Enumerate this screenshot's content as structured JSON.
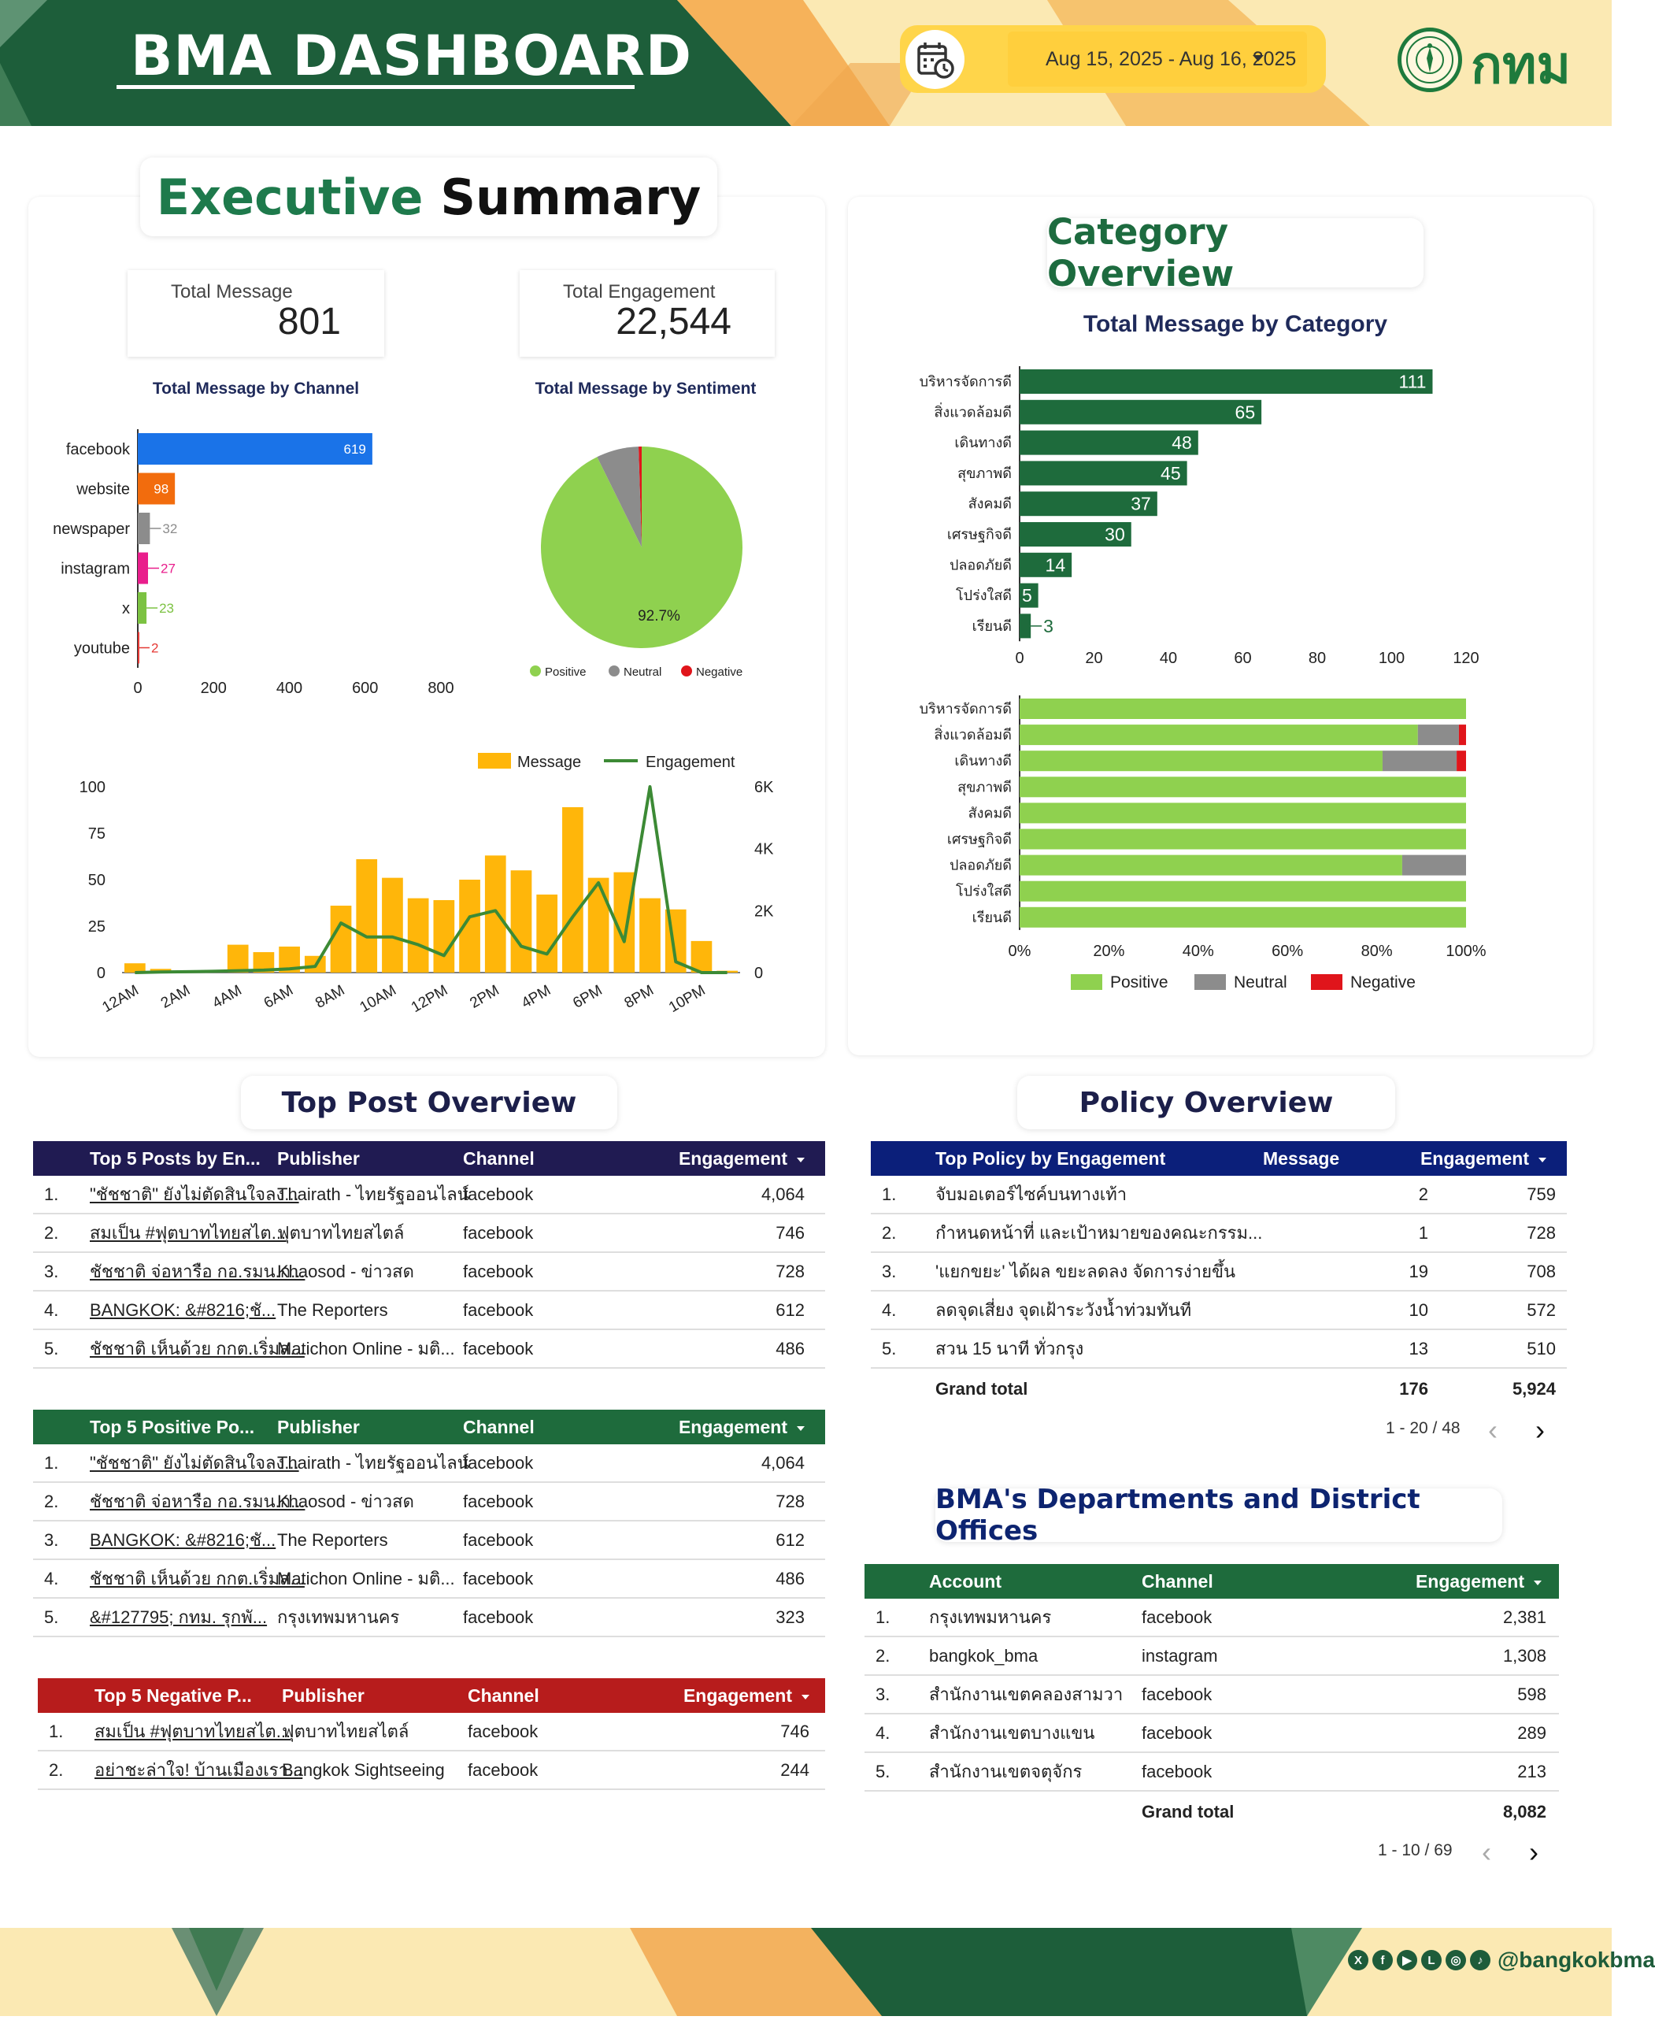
{
  "header": {
    "title": "BMA DASHBOARD",
    "date_range": "Aug 15, 2025 - Aug 16, 2025",
    "logo_text": "กทม"
  },
  "colors": {
    "dark_green": "#1e6b3c",
    "positive": "#8fd14f",
    "neutral": "#8c8c8c",
    "negative": "#e0151b",
    "message": "#ffb60a",
    "engagement": "#3c8a35",
    "navy": "#201b52",
    "policy_blue": "#0b1f7a",
    "red_header": "#b71c1c"
  },
  "executive": {
    "title_word1": "Executive",
    "title_word2": "Summary",
    "total_message_label": "Total Message",
    "total_message_value": "801",
    "total_engagement_label": "Total Engagement",
    "total_engagement_value": "22,544"
  },
  "category": {
    "title": "Category Overview"
  },
  "top_post": {
    "title": "Top Post Overview",
    "engagement": {
      "headers": [
        "Top 5 Posts by En...",
        "Publisher",
        "Channel",
        "Engagement"
      ],
      "rows": [
        {
          "no": "1.",
          "post": "\"ชัชชาติ\" ยังไม่ตัดสินใจลง...",
          "publisher": "Thairath - ไทยรัฐออนไลน์",
          "channel": "facebook",
          "engagement": "4,064"
        },
        {
          "no": "2.",
          "post": "สมเป็น #ฟุตบาทไทยสไต...",
          "publisher": "ฟุตบาทไทยสไตล์",
          "channel": "facebook",
          "engagement": "746"
        },
        {
          "no": "3.",
          "post": "ชัชชาติ จ่อหารือ กอ.รมน.ก...",
          "publisher": "Khaosod - ข่าวสด",
          "channel": "facebook",
          "engagement": "728"
        },
        {
          "no": "4.",
          "post": "BANGKOK: &#8216;ชั...",
          "publisher": "The Reporters",
          "channel": "facebook",
          "engagement": "612"
        },
        {
          "no": "5.",
          "post": "ชัชชาติ เห็นด้วย กกต.เริ่มส...",
          "publisher": "Matichon Online - มติ...",
          "channel": "facebook",
          "engagement": "486"
        }
      ]
    },
    "positive": {
      "headers": [
        "Top 5 Positive Po...",
        "Publisher",
        "Channel",
        "Engagement"
      ],
      "rows": [
        {
          "no": "1.",
          "post": "\"ชัชชาติ\" ยังไม่ตัดสินใจลง...",
          "publisher": "Thairath - ไทยรัฐออนไลน์",
          "channel": "facebook",
          "engagement": "4,064"
        },
        {
          "no": "2.",
          "post": "ชัชชาติ จ่อหารือ กอ.รมน.ก...",
          "publisher": "Khaosod - ข่าวสด",
          "channel": "facebook",
          "engagement": "728"
        },
        {
          "no": "3.",
          "post": "BANGKOK: &#8216;ชั...",
          "publisher": "The Reporters",
          "channel": "facebook",
          "engagement": "612"
        },
        {
          "no": "4.",
          "post": "ชัชชาติ เห็นด้วย กกต.เริ่มส...",
          "publisher": "Matichon Online - มติ...",
          "channel": "facebook",
          "engagement": "486"
        },
        {
          "no": "5.",
          "post": "&#127795; กทม. รุกพั...",
          "publisher": "กรุงเทพมหานคร",
          "channel": "facebook",
          "engagement": "323"
        }
      ]
    },
    "negative": {
      "headers": [
        "Top 5 Negative P...",
        "Publisher",
        "Channel",
        "Engagement"
      ],
      "rows": [
        {
          "no": "1.",
          "post": "สมเป็น #ฟุตบาทไทยสไต...",
          "publisher": "ฟุตบาทไทยสไตล์",
          "channel": "facebook",
          "engagement": "746"
        },
        {
          "no": "2.",
          "post": "อย่าชะล่าใจ! บ้านเมืองเรา...",
          "publisher": "Bangkok Sightseeing",
          "channel": "facebook",
          "engagement": "244"
        }
      ]
    }
  },
  "policy": {
    "title": "Policy Overview",
    "headers": [
      "Top Policy by Engagement",
      "Message",
      "Engagement"
    ],
    "rows": [
      {
        "no": "1.",
        "policy": "จับมอเตอร์ไซค์บนทางเท้า",
        "message": "2",
        "engagement": "759"
      },
      {
        "no": "2.",
        "policy": "กำหนดหน้าที่ และเป้าหมายของคณะกรรม...",
        "message": "1",
        "engagement": "728"
      },
      {
        "no": "3.",
        "policy": "'แยกขยะ' ได้ผล ขยะลดลง จัดการง่ายขึ้น",
        "message": "19",
        "engagement": "708"
      },
      {
        "no": "4.",
        "policy": "ลดจุดเสี่ยง จุดเฝ้าระวังน้ำท่วมทันที",
        "message": "10",
        "engagement": "572"
      },
      {
        "no": "5.",
        "policy": "สวน 15 นาที ทั่วกรุง",
        "message": "13",
        "engagement": "510"
      }
    ],
    "grand_total_label": "Grand total",
    "grand_total_message": "176",
    "grand_total_engagement": "5,924",
    "pager": "1 - 20 / 48"
  },
  "departments": {
    "title": "BMA's Departments and District Offices",
    "headers": [
      "Account",
      "Channel",
      "Engagement"
    ],
    "rows": [
      {
        "no": "1.",
        "account": "กรุงเทพมหานคร",
        "channel": "facebook",
        "engagement": "2,381"
      },
      {
        "no": "2.",
        "account": "bangkok_bma",
        "channel": "instagram",
        "engagement": "1,308"
      },
      {
        "no": "3.",
        "account": "สำนักงานเขตคลองสามวา",
        "channel": "facebook",
        "engagement": "598"
      },
      {
        "no": "4.",
        "account": "สำนักงานเขตบางแขน",
        "channel": "facebook",
        "engagement": "289"
      },
      {
        "no": "5.",
        "account": "สำนักงานเขตจตุจักร",
        "channel": "facebook",
        "engagement": "213"
      }
    ],
    "grand_total_label": "Grand total",
    "grand_total_engagement": "8,082",
    "pager": "1 - 10 / 69"
  },
  "footer": {
    "handle": "@bangkokbma"
  },
  "chart_data": [
    {
      "type": "bar",
      "orientation": "horizontal",
      "title": "Total Message by Channel",
      "categories": [
        "facebook",
        "website",
        "newspaper",
        "instagram",
        "x",
        "youtube"
      ],
      "values": [
        619,
        98,
        32,
        27,
        23,
        2
      ],
      "bar_colors": [
        "#1a73e8",
        "#f26c0d",
        "#8c8c8c",
        "#e91e8c",
        "#7cc242",
        "#e53935"
      ],
      "xlim": [
        0,
        800
      ],
      "xticks": [
        "0",
        "200",
        "400",
        "600",
        "800"
      ]
    },
    {
      "type": "pie",
      "title": "Total Message by Sentiment",
      "labels": [
        "Positive",
        "Neutral",
        "Negative"
      ],
      "values": [
        92.7,
        6.8,
        0.5
      ],
      "colors": [
        "#8fd14f",
        "#8c8c8c",
        "#e0151b"
      ],
      "slice_label": "92.7%",
      "legend": "bottom"
    },
    {
      "type": "bar",
      "title": "",
      "legend": "top-right",
      "x": [
        "12AM",
        "1AM",
        "2AM",
        "3AM",
        "4AM",
        "5AM",
        "6AM",
        "7AM",
        "8AM",
        "9AM",
        "10AM",
        "11AM",
        "12PM",
        "1PM",
        "2PM",
        "3PM",
        "4PM",
        "5PM",
        "6PM",
        "7PM",
        "8PM",
        "9PM",
        "10PM",
        "11PM"
      ],
      "xtick_labels": [
        "12AM",
        "2AM",
        "4AM",
        "6AM",
        "8AM",
        "10AM",
        "12PM",
        "2PM",
        "4PM",
        "6PM",
        "8PM",
        "10PM"
      ],
      "series": [
        {
          "name": "Message",
          "type": "bar",
          "axis": "left",
          "values": [
            5,
            2,
            1,
            0,
            15,
            11,
            14,
            9,
            36,
            61,
            51,
            40,
            39,
            50,
            63,
            55,
            42,
            89,
            51,
            54,
            40,
            34,
            17,
            1
          ]
        },
        {
          "name": "Engagement",
          "type": "line",
          "axis": "right",
          "values": [
            0,
            20,
            30,
            40,
            60,
            80,
            120,
            200,
            1600,
            1150,
            1150,
            900,
            550,
            1800,
            2000,
            850,
            600,
            1800,
            2900,
            1000,
            6000,
            350,
            0,
            0
          ]
        }
      ],
      "ylim_left": [
        0,
        100
      ],
      "yticks_left": [
        "0",
        "25",
        "50",
        "75",
        "100"
      ],
      "ylim_right": [
        0,
        6000
      ],
      "yticks_right": [
        "0",
        "2K",
        "4K",
        "6K"
      ]
    },
    {
      "type": "bar",
      "orientation": "horizontal",
      "title": "Total Message by Category",
      "categories": [
        "บริหารจัดการดี",
        "สิ่งแวดล้อมดี",
        "เดินทางดี",
        "สุขภาพดี",
        "สังคมดี",
        "เศรษฐกิจดี",
        "ปลอดภัยดี",
        "โปร่งใสดี",
        "เรียนดี"
      ],
      "values": [
        111,
        65,
        48,
        45,
        37,
        30,
        14,
        5,
        3
      ],
      "xlim": [
        0,
        120
      ],
      "xticks": [
        "0",
        "20",
        "40",
        "60",
        "80",
        "100",
        "120"
      ]
    },
    {
      "type": "bar",
      "orientation": "horizontal",
      "stacked": "percent",
      "title": "",
      "categories": [
        "บริหารจัดการดี",
        "สิ่งแวดล้อมดี",
        "เดินทางดี",
        "สุขภาพดี",
        "สังคมดี",
        "เศรษฐกิจดี",
        "ปลอดภัยดี",
        "โปร่งใสดี",
        "เรียนดี"
      ],
      "series": [
        {
          "name": "Positive",
          "values": [
            100,
            89.2,
            81.3,
            100,
            100,
            100,
            85.7,
            100,
            100
          ]
        },
        {
          "name": "Neutral",
          "values": [
            0,
            9.2,
            16.6,
            0,
            0,
            0,
            14.3,
            0,
            0
          ]
        },
        {
          "name": "Negative",
          "values": [
            0,
            1.6,
            2.1,
            0,
            0,
            0,
            0,
            0,
            0
          ]
        }
      ],
      "xticks": [
        "0%",
        "20%",
        "40%",
        "60%",
        "80%",
        "100%"
      ],
      "legend": "bottom"
    }
  ]
}
